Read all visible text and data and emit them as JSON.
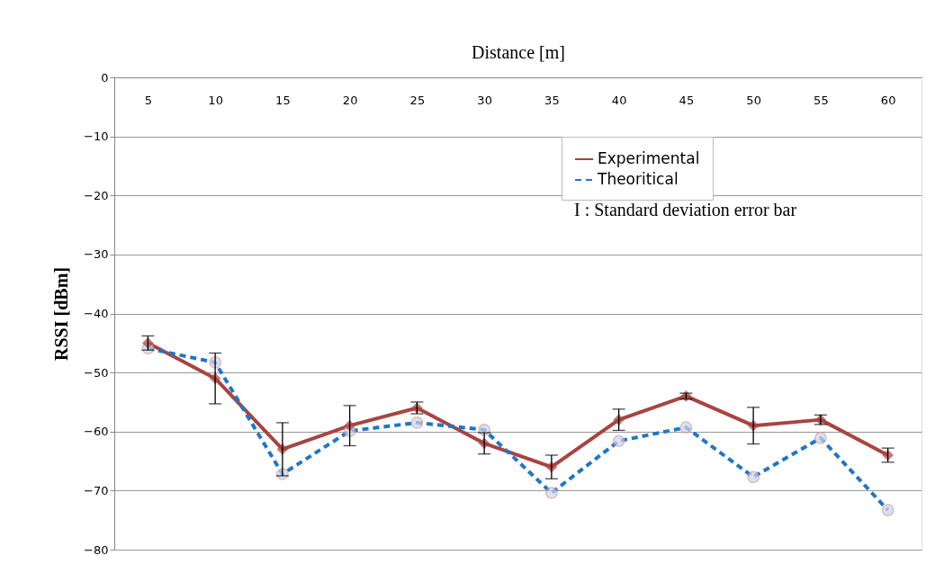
{
  "chart_data": {
    "type": "line",
    "xlabel": "Distance  [m]",
    "ylabel": "RSSI [dBm]",
    "categories": [
      "5",
      "10",
      "15",
      "20",
      "25",
      "30",
      "35",
      "40",
      "45",
      "50",
      "55",
      "60"
    ],
    "series": [
      {
        "name": "Experimental",
        "color": "#a84442",
        "marker": "diamond",
        "line_style": "solid",
        "values": [
          -45,
          -51,
          -63,
          -59,
          -56,
          -62,
          -66,
          -58,
          -54,
          -59,
          -58,
          -64
        ],
        "errors": [
          1.2,
          4.3,
          4.5,
          3.4,
          1,
          1.8,
          2,
          1.8,
          0.5,
          3.1,
          0.8,
          1.2
        ]
      },
      {
        "name": "Theoritical",
        "color": "#1f77c4",
        "marker": "circle",
        "line_style": "dashed",
        "values": [
          -45.9,
          -48.3,
          -67.2,
          -59.9,
          -58.5,
          -59.7,
          -70.4,
          -61.6,
          -59.3,
          -67.7,
          -61.1,
          -73.3
        ]
      }
    ],
    "annotations": [
      "I : Standard deviation  error bar"
    ],
    "ylim": [
      -80,
      0
    ],
    "yticks": [
      0,
      -10,
      -20,
      -30,
      -40,
      -50,
      -60,
      -70,
      -80
    ],
    "grid": "y",
    "legend": "top right"
  }
}
